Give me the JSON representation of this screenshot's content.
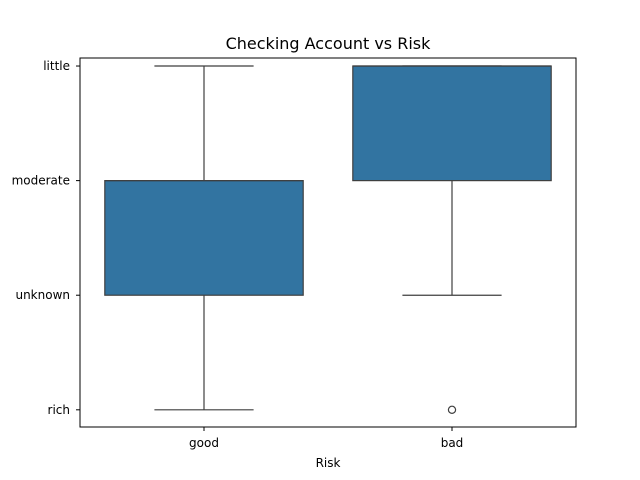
{
  "chart_data": {
    "type": "box",
    "title": "Checking Account vs Risk",
    "xlabel": "Risk",
    "ylabel": "",
    "categories": [
      "good",
      "bad"
    ],
    "y_categories": [
      "rich",
      "unknown",
      "moderate",
      "little"
    ],
    "y_values": [
      0,
      1,
      2,
      3
    ],
    "ylim": [
      -0.15,
      3.07
    ],
    "boxes": [
      {
        "category": "good",
        "whisker_low": 0,
        "q1": 1,
        "median": 2,
        "q3": 2,
        "whisker_high": 3,
        "outliers": []
      },
      {
        "category": "bad",
        "whisker_low": 1,
        "q1": 2,
        "median": 3,
        "q3": 3,
        "whisker_high": 3,
        "outliers": [
          0
        ]
      }
    ],
    "colors": {
      "box_fill": "#3274a1",
      "line": "#3f3f3f"
    },
    "grid": false,
    "legend": "none"
  }
}
